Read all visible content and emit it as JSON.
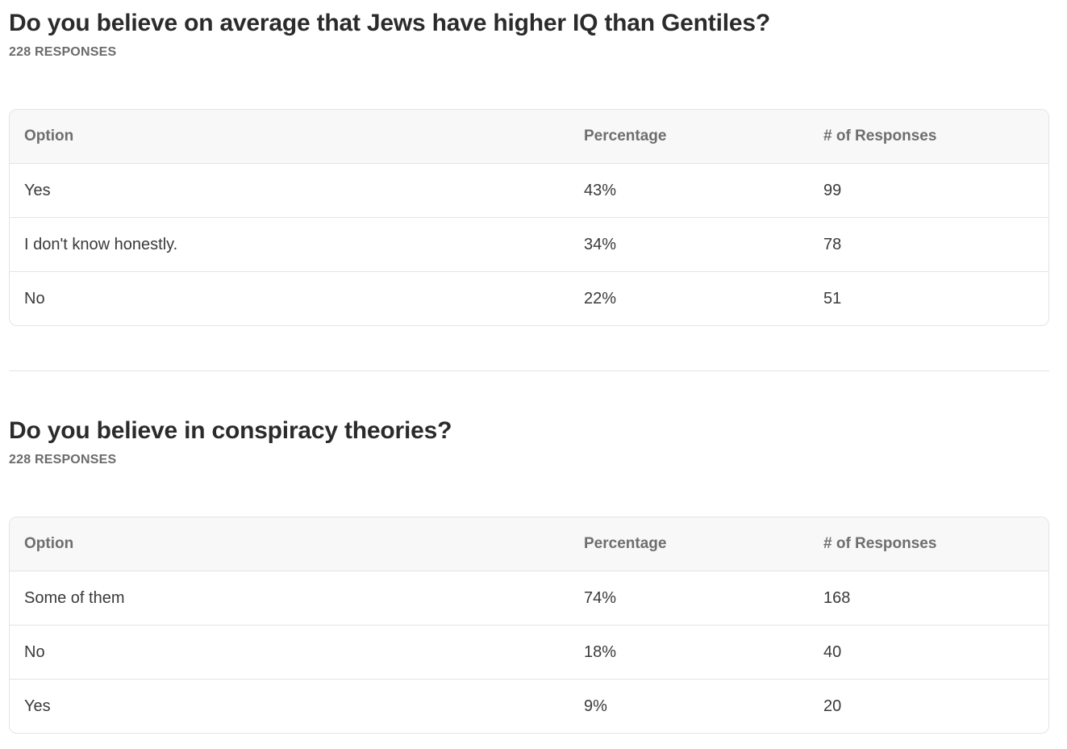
{
  "polls": [
    {
      "question": "Do you believe on average that Jews have higher IQ than Gentiles?",
      "responses_label": "228 RESPONSES",
      "columns": [
        "Option",
        "Percentage",
        "# of Responses"
      ],
      "rows": [
        {
          "option": "Yes",
          "percentage": "43%",
          "count": "99"
        },
        {
          "option": "I don't know honestly.",
          "percentage": "34%",
          "count": "78"
        },
        {
          "option": "No",
          "percentage": "22%",
          "count": "51"
        }
      ]
    },
    {
      "question": "Do you believe in conspiracy theories?",
      "responses_label": "228 RESPONSES",
      "columns": [
        "Option",
        "Percentage",
        "# of Responses"
      ],
      "rows": [
        {
          "option": "Some of them",
          "percentage": "74%",
          "count": "168"
        },
        {
          "option": "No",
          "percentage": "18%",
          "count": "40"
        },
        {
          "option": "Yes",
          "percentage": "9%",
          "count": "20"
        }
      ]
    }
  ]
}
